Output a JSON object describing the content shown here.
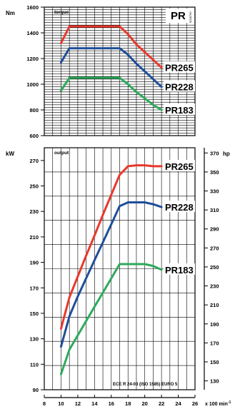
{
  "chart_data": [
    {
      "type": "line",
      "title": "torque",
      "corner_label": "PR",
      "code_label": "0028790",
      "ylabel": "Nm",
      "ylim": [
        600,
        1600
      ],
      "yticks": [
        600,
        800,
        1000,
        1200,
        1400,
        1600
      ],
      "xlim": [
        8,
        26
      ],
      "grid": true,
      "series": [
        {
          "name": "PR265",
          "color": "#e8382c",
          "x": [
            10,
            11,
            12,
            13,
            14,
            15,
            16,
            17,
            18,
            19,
            20,
            21,
            22
          ],
          "y": [
            1320,
            1450,
            1450,
            1450,
            1450,
            1450,
            1450,
            1450,
            1390,
            1310,
            1250,
            1190,
            1130
          ]
        },
        {
          "name": "PR228",
          "color": "#1f4e9a",
          "x": [
            10,
            11,
            12,
            13,
            14,
            15,
            16,
            17,
            18,
            19,
            20,
            21,
            22
          ],
          "y": [
            1170,
            1280,
            1280,
            1280,
            1280,
            1280,
            1280,
            1280,
            1230,
            1160,
            1100,
            1040,
            980
          ]
        },
        {
          "name": "PR183",
          "color": "#2eaa5c",
          "x": [
            10,
            11,
            12,
            13,
            14,
            15,
            16,
            17,
            18,
            19,
            20,
            21,
            22
          ],
          "y": [
            950,
            1050,
            1050,
            1050,
            1050,
            1050,
            1050,
            1050,
            1000,
            940,
            890,
            840,
            800
          ]
        }
      ]
    },
    {
      "type": "line",
      "title": "output",
      "ylabel": "kW",
      "ylabel_right": "hp",
      "ylim": [
        90,
        280
      ],
      "yticks": [
        90,
        110,
        130,
        150,
        170,
        190,
        210,
        230,
        250,
        270
      ],
      "y2ticks": [
        130,
        150,
        170,
        190,
        210,
        230,
        250,
        270,
        290,
        310,
        330,
        350,
        370
      ],
      "xlabel": "x 100 min-1",
      "xlim": [
        8,
        26
      ],
      "xticks": [
        8,
        10,
        12,
        14,
        16,
        18,
        20,
        22,
        24,
        26
      ],
      "grid": true,
      "annotation": "ECE R 24-03 (ISO 1585) EURO 5",
      "series": [
        {
          "name": "PR265",
          "color": "#e8382c",
          "x": [
            10,
            11,
            12,
            13,
            14,
            15,
            16,
            17,
            18,
            19,
            20,
            21,
            22
          ],
          "y": [
            185,
            218,
            240,
            262,
            283,
            305,
            326,
            347,
            356,
            357,
            357,
            356,
            356
          ]
        },
        {
          "name": "PR228",
          "color": "#1f4e9a",
          "x": [
            10,
            11,
            12,
            13,
            14,
            15,
            16,
            17,
            18,
            19,
            20,
            21,
            22
          ],
          "y": [
            166,
            198,
            219,
            238,
            257,
            276,
            295,
            314,
            318,
            318,
            318,
            316,
            313
          ]
        },
        {
          "name": "PR183",
          "color": "#2eaa5c",
          "x": [
            10,
            11,
            12,
            13,
            14,
            15,
            16,
            17,
            18,
            19,
            20,
            21,
            22
          ],
          "y": [
            137,
            163,
            178,
            193,
            208,
            223,
            238,
            253,
            253,
            253,
            253,
            251,
            247
          ]
        }
      ]
    }
  ]
}
